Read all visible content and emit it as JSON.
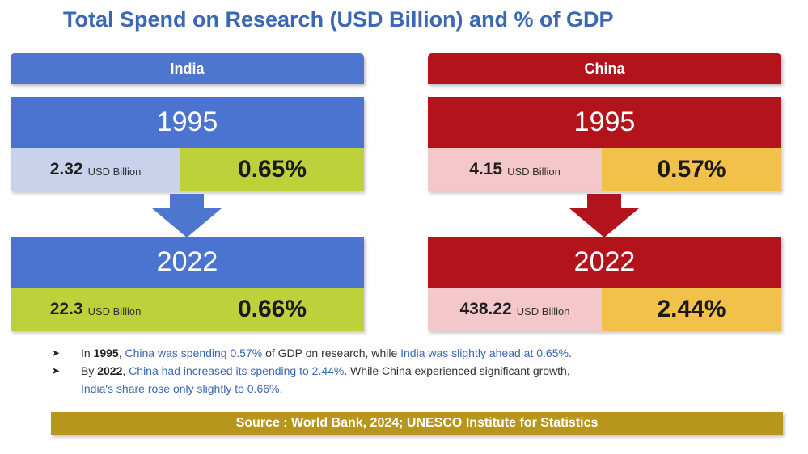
{
  "title": "Total Spend on Research (USD Billion) and % of GDP",
  "colors": {
    "india_header": "#4d76cf",
    "china_header": "#b3141c",
    "india_green": "#bcd13a",
    "china_yellow": "#f2c14a",
    "source_gold": "#b8961b",
    "title_blue": "#3b67b3"
  },
  "india": {
    "label": "India",
    "year1": "1995",
    "spend1": "2.32",
    "pct1": "0.65%",
    "year2": "2022",
    "spend2": "22.3",
    "pct2": "0.66%",
    "unit": "USD Billion"
  },
  "china": {
    "label": "China",
    "year1": "1995",
    "spend1": "4.15",
    "pct1": "0.57%",
    "year2": "2022",
    "spend2": "438.22",
    "pct2": "2.44%",
    "unit": "USD Billion"
  },
  "bullets": {
    "b1_pre": "In ",
    "b1_year": "1995",
    "b1_comma": ", ",
    "b1_china": "China was spending 0.57%",
    "b1_mid": " of GDP on research, while ",
    "b1_india": "India was slightly ahead at 0.65%",
    "b1_end": ".",
    "b2_pre": "By ",
    "b2_year": "2022",
    "b2_comma": ", ",
    "b2_china": "China had increased its spending to 2.44%",
    "b2_mid": ". While China experienced significant growth,",
    "b2_india": "India's share rose only slightly to 0.66%",
    "b2_end": "."
  },
  "source": "Source : World Bank, 2024; UNESCO Institute for Statistics"
}
